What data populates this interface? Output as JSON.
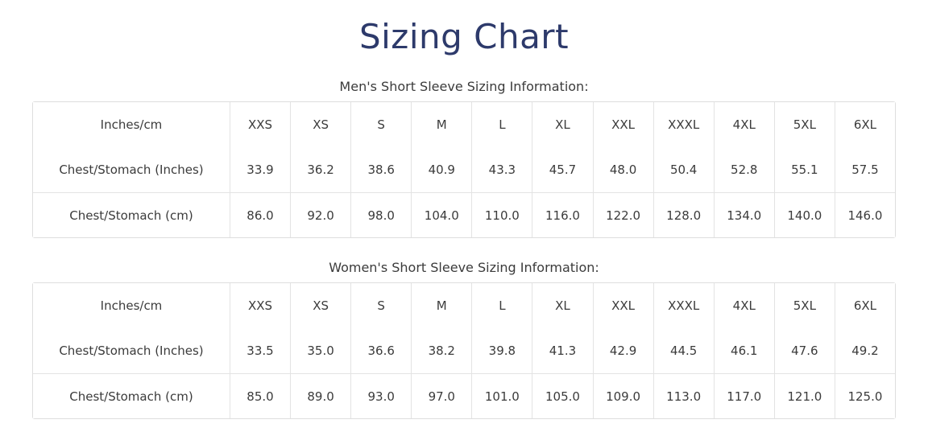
{
  "page": {
    "title": "Sizing Chart"
  },
  "colors": {
    "title_text": "#2d3a6b",
    "body_text": "#3b3b3b",
    "table_border": "#e3e3e3",
    "background": "#ffffff"
  },
  "tables": [
    {
      "id": "mens",
      "caption": "Men's Short Sleeve Sizing Information:",
      "header": [
        "Inches/cm",
        "XXS",
        "XS",
        "S",
        "M",
        "L",
        "XL",
        "XXL",
        "XXXL",
        "4XL",
        "5XL",
        "6XL"
      ],
      "rows": [
        {
          "label": "Chest/Stomach (Inches)",
          "values": [
            "33.9",
            "36.2",
            "38.6",
            "40.9",
            "43.3",
            "45.7",
            "48.0",
            "50.4",
            "52.8",
            "55.1",
            "57.5"
          ]
        },
        {
          "label": "Chest/Stomach (cm)",
          "values": [
            "86.0",
            "92.0",
            "98.0",
            "104.0",
            "110.0",
            "116.0",
            "122.0",
            "128.0",
            "134.0",
            "140.0",
            "146.0"
          ]
        }
      ]
    },
    {
      "id": "womens",
      "caption": "Women's Short Sleeve Sizing Information:",
      "header": [
        "Inches/cm",
        "XXS",
        "XS",
        "S",
        "M",
        "L",
        "XL",
        "XXL",
        "XXXL",
        "4XL",
        "5XL",
        "6XL"
      ],
      "rows": [
        {
          "label": "Chest/Stomach (Inches)",
          "values": [
            "33.5",
            "35.0",
            "36.6",
            "38.2",
            "39.8",
            "41.3",
            "42.9",
            "44.5",
            "46.1",
            "47.6",
            "49.2"
          ]
        },
        {
          "label": "Chest/Stomach (cm)",
          "values": [
            "85.0",
            "89.0",
            "93.0",
            "97.0",
            "101.0",
            "105.0",
            "109.0",
            "113.0",
            "117.0",
            "121.0",
            "125.0"
          ]
        }
      ]
    }
  ]
}
